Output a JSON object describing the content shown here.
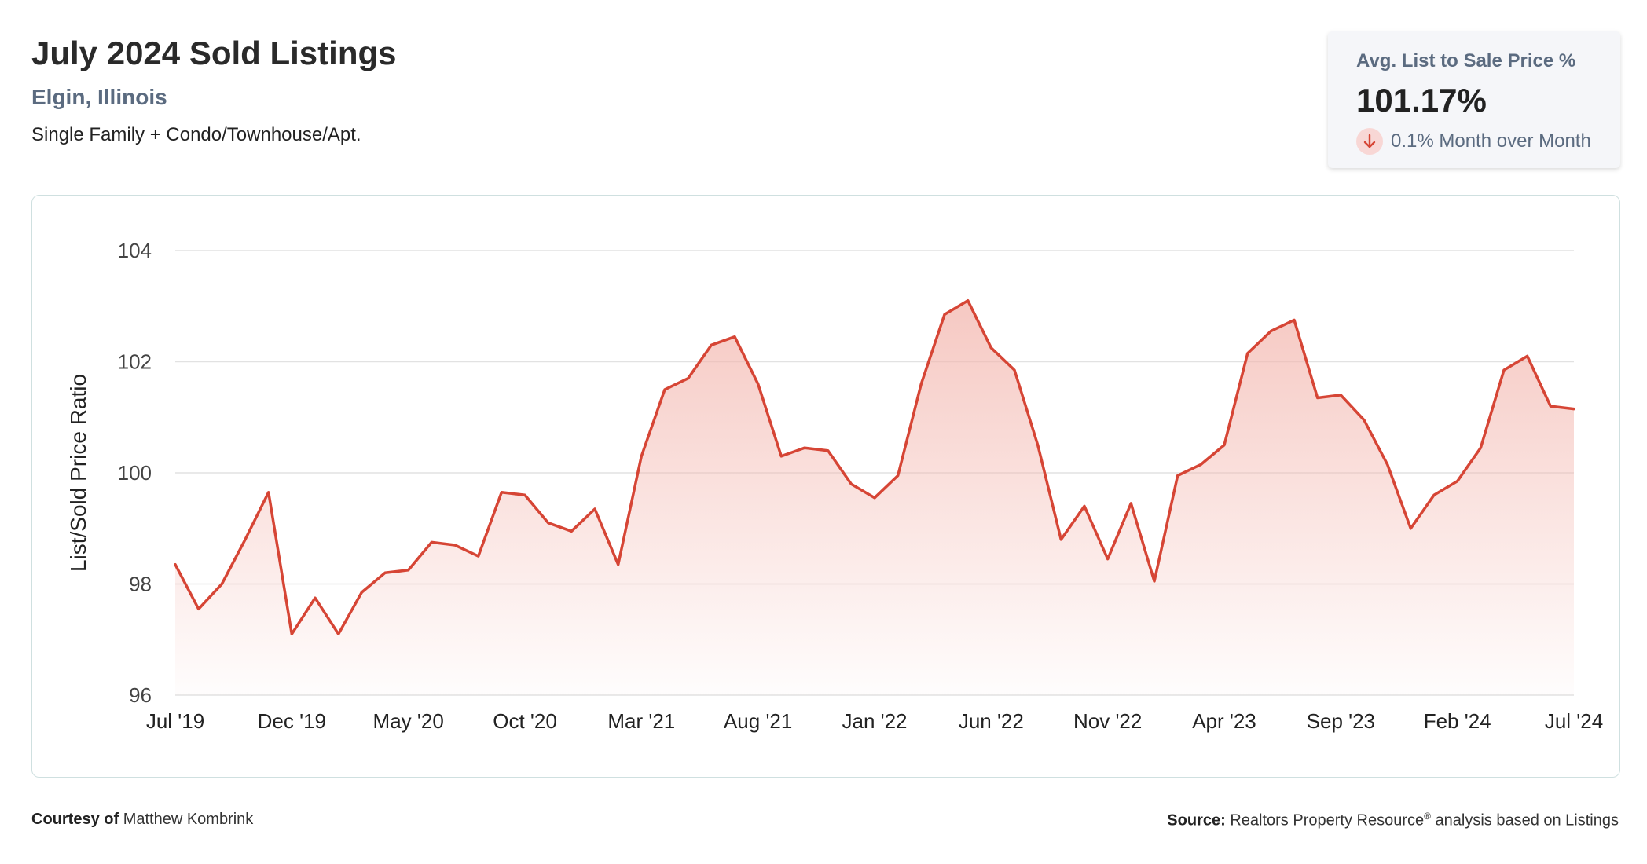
{
  "header": {
    "title": "July 2024 Sold Listings",
    "subtitle": "Elgin, Illinois",
    "description": "Single Family + Condo/Townhouse/Apt."
  },
  "stat": {
    "label": "Avg. List to Sale Price %",
    "value": "101.17%",
    "change": "0.1% Month over Month",
    "change_direction": "down",
    "icon": "arrow-down-icon"
  },
  "footer": {
    "courtesy_label": "Courtesy of",
    "courtesy_name": "Matthew Kombrink",
    "source_label": "Source:",
    "source_text": "Realtors Property Resource",
    "source_mark": "®",
    "source_rest": "analysis based on Listings"
  },
  "colors": {
    "line": "#d64535",
    "fill_top": "#f3b6ae",
    "grid": "#e2e2e2",
    "accent_text": "#5b6b80"
  },
  "chart_data": {
    "type": "area",
    "ylabel": "List/Sold Price Ratio",
    "xlabel": "",
    "ylim": [
      96,
      104
    ],
    "yticks": [
      96,
      98,
      100,
      102,
      104
    ],
    "xtick_labels": [
      "Jul '19",
      "Dec '19",
      "May '20",
      "Oct '20",
      "Mar '21",
      "Aug '21",
      "Jan '22",
      "Jun '22",
      "Nov '22",
      "Apr '23",
      "Sep '23",
      "Feb '24",
      "Jul '24"
    ],
    "grid": true,
    "legend": false,
    "series": [
      {
        "name": "",
        "x": [
          "2019-07",
          "2019-08",
          "2019-09",
          "2019-10",
          "2019-11",
          "2019-12",
          "2020-01",
          "2020-02",
          "2020-03",
          "2020-04",
          "2020-05",
          "2020-06",
          "2020-07",
          "2020-08",
          "2020-09",
          "2020-10",
          "2020-11",
          "2020-12",
          "2021-01",
          "2021-02",
          "2021-03",
          "2021-04",
          "2021-05",
          "2021-06",
          "2021-07",
          "2021-08",
          "2021-09",
          "2021-10",
          "2021-11",
          "2021-12",
          "2022-01",
          "2022-02",
          "2022-03",
          "2022-04",
          "2022-05",
          "2022-06",
          "2022-07",
          "2022-08",
          "2022-09",
          "2022-10",
          "2022-11",
          "2022-12",
          "2023-01",
          "2023-02",
          "2023-03",
          "2023-04",
          "2023-05",
          "2023-06",
          "2023-07",
          "2023-08",
          "2023-09",
          "2023-10",
          "2023-11",
          "2023-12",
          "2024-01",
          "2024-02",
          "2024-03",
          "2024-04",
          "2024-05",
          "2024-06",
          "2024-07"
        ],
        "values": [
          98.35,
          97.55,
          98.0,
          98.8,
          99.65,
          97.1,
          97.75,
          97.1,
          97.85,
          98.2,
          98.25,
          98.75,
          98.7,
          98.5,
          99.65,
          99.6,
          99.1,
          98.95,
          99.35,
          98.35,
          100.3,
          101.5,
          101.7,
          102.3,
          102.45,
          101.6,
          100.3,
          100.45,
          100.4,
          99.8,
          99.55,
          99.95,
          101.6,
          102.85,
          103.1,
          102.25,
          101.85,
          100.5,
          98.8,
          99.4,
          98.45,
          99.45,
          98.05,
          99.95,
          100.15,
          100.5,
          102.15,
          102.55,
          102.75,
          101.35,
          101.4,
          100.95,
          100.15,
          99.0,
          99.6,
          99.85,
          100.45,
          101.85,
          102.1,
          101.2,
          101.15
        ]
      }
    ]
  }
}
